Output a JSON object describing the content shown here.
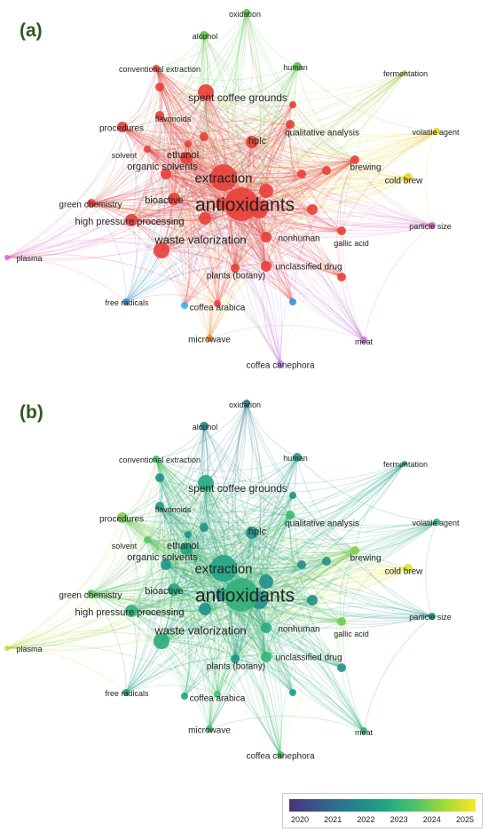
{
  "panels": [
    {
      "label": "(a)",
      "coloring": "cluster"
    },
    {
      "label": "(b)",
      "coloring": "year"
    }
  ],
  "nodes": [
    {
      "id": "antioxidants",
      "label": "antioxidants",
      "cluster": "red",
      "year": 2022.9,
      "weight": 5
    },
    {
      "id": "extraction",
      "label": "extraction",
      "cluster": "red",
      "year": 2022.6,
      "weight": 4
    },
    {
      "id": "waste_valorization",
      "label": "waste valorization",
      "cluster": "red",
      "year": 2022.8,
      "weight": 3
    },
    {
      "id": "spent_coffee_grounds",
      "label": "spent coffee grounds",
      "cluster": "red",
      "year": 2022.7,
      "weight": 3
    },
    {
      "id": "high_pressure_processing",
      "label": "high pressure processing",
      "cluster": "red",
      "year": 2022.9,
      "weight": 2
    },
    {
      "id": "bioactive",
      "label": "bioactive",
      "cluster": "red",
      "year": 2022.7,
      "weight": 2
    },
    {
      "id": "organic_solvents",
      "label": "organic solvents",
      "cluster": "red",
      "year": 2022.3,
      "weight": 2
    },
    {
      "id": "ethanol",
      "label": "ethanol",
      "cluster": "red",
      "year": 2022.6,
      "weight": 2
    },
    {
      "id": "hplc",
      "label": "hplc",
      "cluster": "red",
      "year": 2022.2,
      "weight": 2
    },
    {
      "id": "procedures",
      "label": "procedures",
      "cluster": "red",
      "year": 2023.8,
      "weight": 1
    },
    {
      "id": "solvent",
      "label": "solvent",
      "cluster": "red",
      "year": 2023.5,
      "weight": 1
    },
    {
      "id": "green_chemistry",
      "label": "green chemistry",
      "cluster": "red",
      "year": 2023.6,
      "weight": 1
    },
    {
      "id": "flavonoids",
      "label": "flavonoids",
      "cluster": "red",
      "year": 2022.4,
      "weight": 1
    },
    {
      "id": "conventional_extraction",
      "label": "conventional extraction",
      "cluster": "red",
      "year": 2023.3,
      "weight": 1
    },
    {
      "id": "qualitative_analysis",
      "label": "qualitative analysis",
      "cluster": "red",
      "year": 2023.1,
      "weight": 1
    },
    {
      "id": "brewing",
      "label": "brewing",
      "cluster": "red",
      "year": 2023.9,
      "weight": 1
    },
    {
      "id": "nonhuman",
      "label": "nonhuman",
      "cluster": "red",
      "year": 2022.8,
      "weight": 1
    },
    {
      "id": "unclassified_drug",
      "label": "unclassified drug",
      "cluster": "red",
      "year": 2023.0,
      "weight": 1
    },
    {
      "id": "plants_botany",
      "label": "plants (botany)",
      "cluster": "red",
      "year": 2022.2,
      "weight": 1
    },
    {
      "id": "gallic_acid",
      "label": "gallic acid",
      "cluster": "red",
      "year": 2023.7,
      "weight": 1
    },
    {
      "id": "coffea_arabica",
      "label": "coffea arabica",
      "cluster": "red",
      "year": 2023.3,
      "weight": 1
    },
    {
      "id": "oxidation",
      "label": "oxidation",
      "cluster": "green",
      "year": 2021.5,
      "weight": 1
    },
    {
      "id": "alcohol",
      "label": "alcohol",
      "cluster": "green",
      "year": 2021.9,
      "weight": 1
    },
    {
      "id": "human",
      "label": "human",
      "cluster": "green",
      "year": 2022.4,
      "weight": 1
    },
    {
      "id": "fermentation",
      "label": "fermentation",
      "cluster": "lime",
      "year": 2022.5,
      "weight": 1
    },
    {
      "id": "volatile_agent",
      "label": "volatile agent",
      "cluster": "yellow",
      "year": 2022.9,
      "weight": 1
    },
    {
      "id": "cold_brew",
      "label": "cold brew",
      "cluster": "yellow",
      "year": 2024.8,
      "weight": 1
    },
    {
      "id": "particle_size",
      "label": "particle size",
      "cluster": "pink",
      "year": 2022.3,
      "weight": 1
    },
    {
      "id": "plasma",
      "label": "plasma",
      "cluster": "pink",
      "year": 2024.4,
      "weight": 1
    },
    {
      "id": "meat",
      "label": "meat",
      "cluster": "violet",
      "year": 2022.9,
      "weight": 1
    },
    {
      "id": "coffea_canephora",
      "label": "coffea canephora",
      "cluster": "violet",
      "year": 2023.2,
      "weight": 1
    },
    {
      "id": "microwave",
      "label": "microwave",
      "cluster": "orange",
      "year": 2023.1,
      "weight": 1
    },
    {
      "id": "free_radicals",
      "label": "free radicals",
      "cluster": "blue",
      "year": 2022.4,
      "weight": 1
    }
  ],
  "cluster_colors": {
    "red": "#e8413c",
    "green": "#5cc24a",
    "lime": "#a6d654",
    "yellow": "#e6d21e",
    "pink": "#e266c8",
    "violet": "#c479e0",
    "orange": "#f0923a",
    "blue": "#3f8fdc",
    "cyan": "#38b4e8"
  },
  "colorbar": {
    "ticks": [
      "2020",
      "2021",
      "2022",
      "2023",
      "2024",
      "2025"
    ],
    "min": 2020,
    "max": 2025,
    "colors": [
      "#46327e",
      "#365c8d",
      "#277f8e",
      "#1fa187",
      "#4ac16d",
      "#a0da39",
      "#fde725"
    ]
  }
}
